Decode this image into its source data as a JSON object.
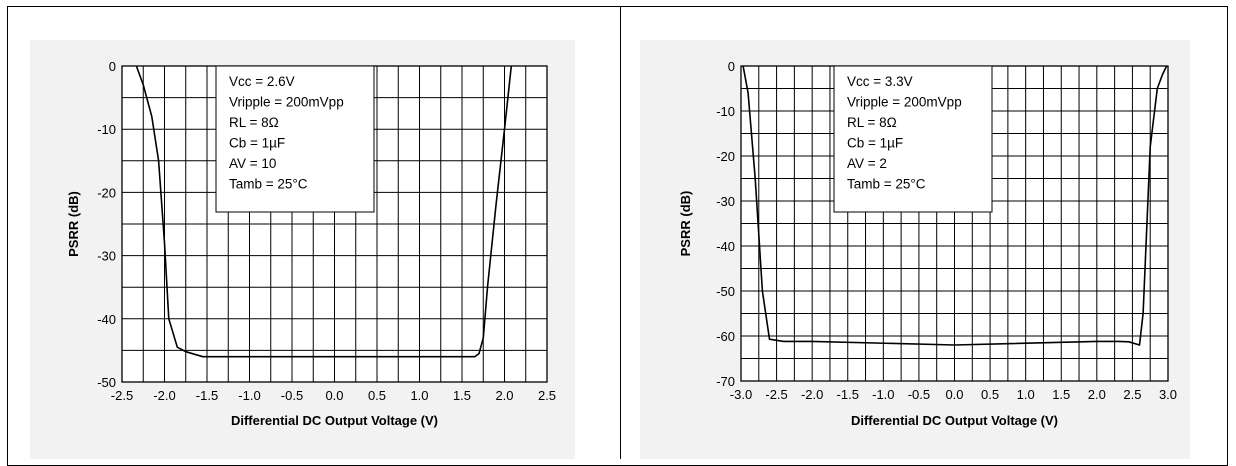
{
  "colors": {
    "panel_bg": "#f2f2f2",
    "grid": "#000000",
    "curve": "#000000"
  },
  "chart_data": [
    {
      "type": "line",
      "xlabel": "Differential DC Output Voltage (V)",
      "ylabel": "PSRR (dB)",
      "xlim": [
        -2.5,
        2.5
      ],
      "ylim": [
        -50,
        0
      ],
      "x_ticks": [
        "-2.5",
        "-2.0",
        "-1.5",
        "-1.0",
        "-0.5",
        "0.0",
        "0.5",
        "1.0",
        "1.5",
        "2.0",
        "2.5"
      ],
      "y_ticks": [
        "0",
        "-10",
        "-20",
        "-30",
        "-40",
        "-50"
      ],
      "grid": true,
      "legend_placement": "top-left",
      "annotation": [
        "Vcc = 2.6V",
        "Vripple = 200mVpp",
        "RL = 8Ω",
        "Cb = 1µF",
        "AV = 10",
        "Tamb = 25°C"
      ],
      "series": [
        {
          "x": [
            -2.33,
            -2.25,
            -2.15,
            -2.07,
            -2.0,
            -1.95,
            -1.85,
            -1.75,
            -1.55,
            0.0,
            1.65,
            1.7,
            1.75,
            1.8,
            1.9,
            2.0,
            2.08
          ],
          "y": [
            0,
            -3,
            -8,
            -15,
            -28,
            -40,
            -44.5,
            -45.2,
            -46,
            -46,
            -46,
            -45.5,
            -43,
            -35,
            -22,
            -10,
            0
          ]
        }
      ]
    },
    {
      "type": "line",
      "xlabel": "Differential DC Output Voltage (V)",
      "ylabel": "PSRR (dB)",
      "xlim": [
        -3.0,
        3.0
      ],
      "ylim": [
        -70,
        0
      ],
      "x_ticks": [
        "-3.0",
        "-2.5",
        "-2.0",
        "-1.5",
        "-1.0",
        "-0.5",
        "0.0",
        "0.5",
        "1.0",
        "1.5",
        "2.0",
        "2.5",
        "3.0"
      ],
      "y_ticks": [
        "0",
        "-10",
        "-20",
        "-30",
        "-40",
        "-50",
        "-60",
        "-70"
      ],
      "grid": true,
      "legend_placement": "top-left",
      "annotation": [
        "Vcc = 3.3V",
        "Vripple = 200mVpp",
        "RL = 8Ω",
        "Cb = 1µF",
        "AV = 2",
        "Tamb = 25°C"
      ],
      "series": [
        {
          "x": [
            -2.97,
            -2.9,
            -2.8,
            -2.7,
            -2.6,
            -2.4,
            -2.0,
            0.0,
            2.0,
            2.3,
            2.45,
            2.6,
            2.65,
            2.75,
            2.85,
            2.92,
            2.98
          ],
          "y": [
            0,
            -6,
            -25,
            -50,
            -60.7,
            -61.2,
            -61.2,
            -62,
            -61.2,
            -61.2,
            -61.3,
            -62,
            -55,
            -18,
            -5,
            -2,
            0
          ]
        }
      ]
    }
  ]
}
